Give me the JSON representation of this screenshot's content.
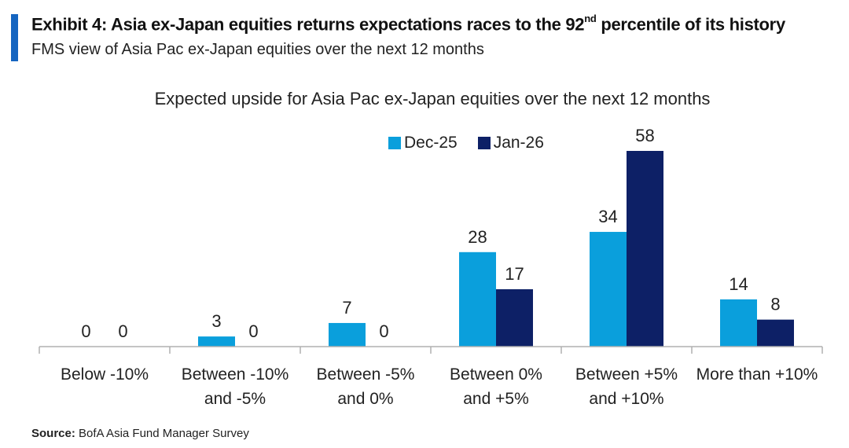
{
  "header": {
    "title": "Exhibit 4: Asia ex-Japan equities returns expectations races to the 92",
    "title_sup": "nd",
    "title_tail": " percentile of its history",
    "subtitle": "FMS view of Asia Pac ex-Japan equities over the next 12 months"
  },
  "source": {
    "label": "Source:",
    "text": " BofA Asia Fund Manager Survey"
  },
  "colors": {
    "accent": "#1565c0",
    "dec25": "#0a9fdc",
    "jan26": "#0d2066",
    "axis": "#b0b0b0"
  },
  "chart_data": {
    "type": "bar",
    "title": "Expected upside for Asia Pac ex-Japan equities over the next 12 months",
    "categories": [
      [
        "Below -10%"
      ],
      [
        "Between -10%",
        "and -5%"
      ],
      [
        "Between -5%",
        "and 0%"
      ],
      [
        "Between 0%",
        "and +5%"
      ],
      [
        "Between +5%",
        "and +10%"
      ],
      [
        "More than +10%"
      ]
    ],
    "series": [
      {
        "name": "Dec-25",
        "values": [
          0,
          3,
          7,
          28,
          34,
          14
        ]
      },
      {
        "name": "Jan-26",
        "values": [
          0,
          0,
          0,
          17,
          58,
          8
        ]
      }
    ],
    "ylim": [
      0,
      58
    ],
    "grid": false,
    "legend": "top-center",
    "data_labels": true
  }
}
